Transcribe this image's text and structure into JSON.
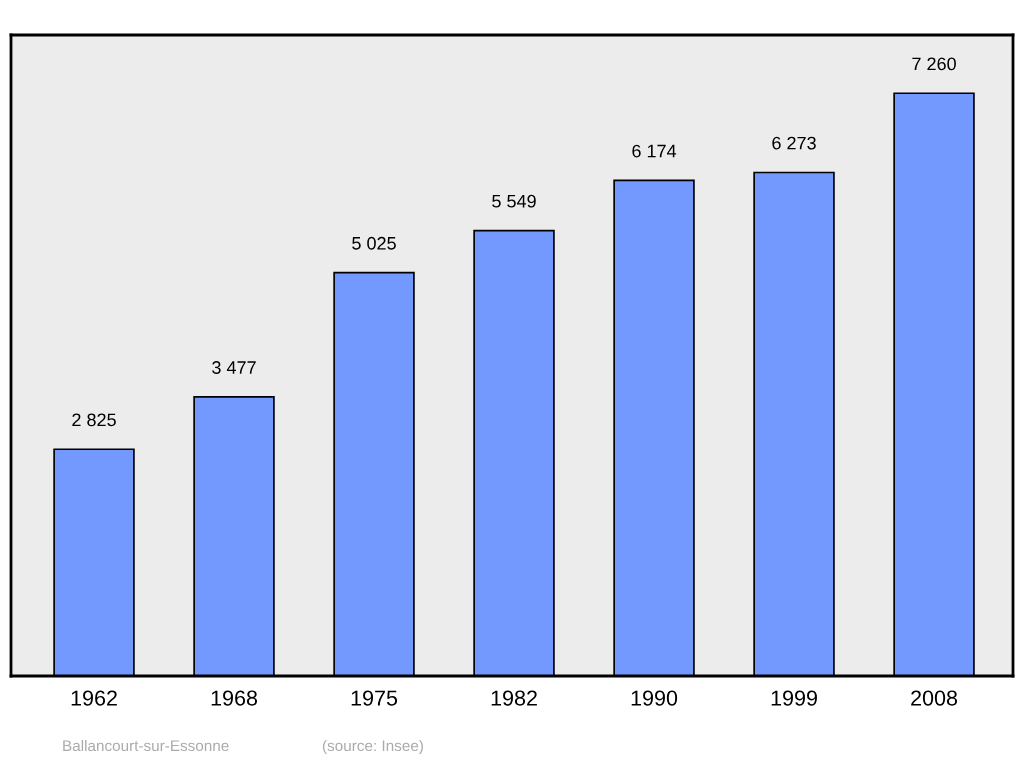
{
  "chart_data": {
    "type": "bar",
    "categories": [
      "1962",
      "1968",
      "1975",
      "1982",
      "1990",
      "1999",
      "2008"
    ],
    "values": [
      2825,
      3477,
      5025,
      5549,
      6174,
      6273,
      7260
    ],
    "value_labels": [
      "2 825",
      "3 477",
      "5 025",
      "5 549",
      "6 174",
      "6 273",
      "7 260"
    ],
    "color": "#7399ff",
    "annotations": [
      "Ballancourt-sur-Essonne",
      "(source: Insee)"
    ],
    "grid": false,
    "legend": false
  }
}
